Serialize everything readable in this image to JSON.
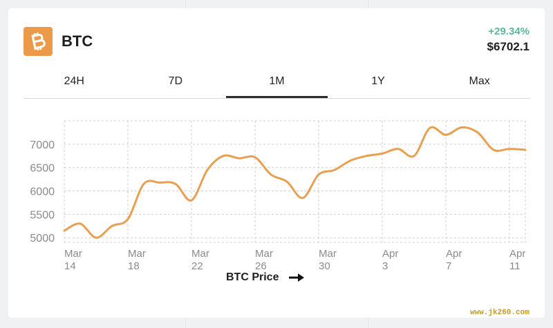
{
  "header": {
    "ticker": "BTC",
    "change": "+29.34%",
    "price": "$6702.1",
    "icon": "bitcoin-icon",
    "icon_color": "#ea9a48",
    "change_color": "#5bb79a"
  },
  "tabs": [
    {
      "label": "24H",
      "active": false
    },
    {
      "label": "7D",
      "active": false
    },
    {
      "label": "1M",
      "active": true
    },
    {
      "label": "1Y",
      "active": false
    },
    {
      "label": "Max",
      "active": false
    }
  ],
  "chart_data": {
    "type": "line",
    "title": "",
    "xlabel": "BTC Price",
    "ylabel": "",
    "y_ticks": [
      5000,
      5500,
      6000,
      6500,
      7000
    ],
    "ylim": [
      4900,
      7500
    ],
    "x_ticks": [
      {
        "day": 0,
        "line1": "Mar",
        "line2": "14"
      },
      {
        "day": 4,
        "line1": "Mar",
        "line2": "18"
      },
      {
        "day": 8,
        "line1": "Mar",
        "line2": "22"
      },
      {
        "day": 12,
        "line1": "Mar",
        "line2": "26"
      },
      {
        "day": 16,
        "line1": "Mar",
        "line2": "30"
      },
      {
        "day": 20,
        "line1": "Apr",
        "line2": "3"
      },
      {
        "day": 24,
        "line1": "Apr",
        "line2": "7"
      },
      {
        "day": 28,
        "line1": "Apr",
        "line2": "11"
      }
    ],
    "grid": true,
    "line_color": "#e8a050",
    "series": [
      {
        "x": [
          0,
          1,
          2,
          3,
          4,
          5,
          6,
          7,
          8,
          9,
          10,
          11,
          12,
          13,
          14,
          15,
          16,
          17,
          18,
          19,
          20,
          21,
          22,
          23,
          24,
          25,
          26,
          27,
          28,
          29
        ],
        "values": [
          5150,
          5300,
          5000,
          5250,
          5400,
          6150,
          6180,
          6150,
          5800,
          6450,
          6750,
          6700,
          6720,
          6350,
          6200,
          5850,
          6350,
          6450,
          6650,
          6750,
          6800,
          6900,
          6750,
          7350,
          7200,
          7360,
          7250,
          6880,
          6900,
          6880
        ]
      }
    ]
  },
  "caption": {
    "label": "BTC Price",
    "arrow": "arrow-right-icon"
  },
  "watermark": "www.jk260.com"
}
